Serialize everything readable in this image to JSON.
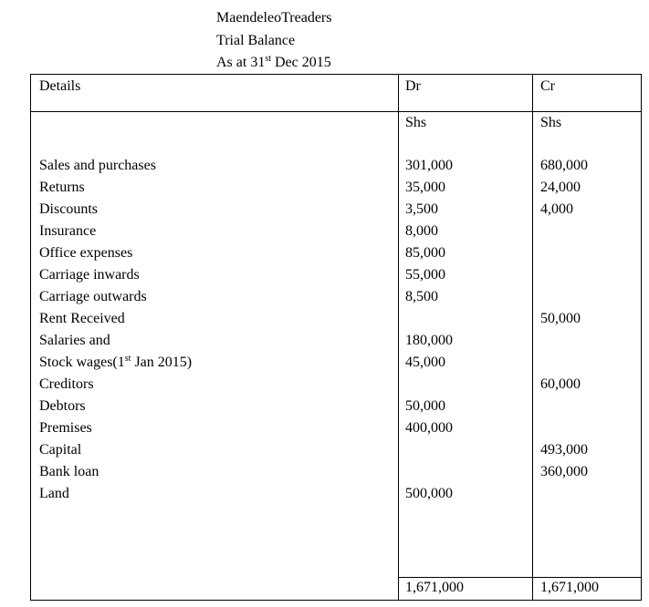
{
  "header": {
    "business_name": "MaendeleoTreaders",
    "statement": "Trial Balance",
    "date_prefix": "As at 31",
    "date_sup": "st",
    "date_suffix": " Dec 2015"
  },
  "table": {
    "columns": [
      "Details",
      "Dr",
      "Cr"
    ],
    "currency": {
      "dr": "Shs",
      "cr": "Shs"
    },
    "rows": [
      {
        "details": "Sales and purchases",
        "dr": "301,000",
        "cr": "680,000"
      },
      {
        "details": "Returns",
        "dr": "35,000",
        "cr": "24,000"
      },
      {
        "details": "Discounts",
        "dr": "3,500",
        "cr": "4,000"
      },
      {
        "details": "Insurance",
        "dr": "8,000",
        "cr": ""
      },
      {
        "details": "Office expenses",
        "dr": "85,000",
        "cr": ""
      },
      {
        "details": "Carriage inwards",
        "dr": "55,000",
        "cr": ""
      },
      {
        "details": "Carriage outwards",
        "dr": "8,500",
        "cr": ""
      },
      {
        "details": "Rent Received",
        "dr": "",
        "cr": "50,000"
      },
      {
        "details": "Salaries and",
        "dr": "180,000",
        "cr": ""
      },
      {
        "details": "Stock wages(1",
        "details_sup": "st",
        "details_suffix": " Jan 2015)",
        "dr": "45,000",
        "cr": ""
      },
      {
        "details": "Creditors",
        "dr": "",
        "cr": "60,000"
      },
      {
        "details": "Debtors",
        "dr": "50,000",
        "cr": ""
      },
      {
        "details": "Premises",
        "dr": "400,000",
        "cr": ""
      },
      {
        "details": "Capital",
        "dr": "",
        "cr": "493,000"
      },
      {
        "details": "Bank loan",
        "dr": "",
        "cr": "360,000"
      },
      {
        "details": "Land",
        "dr": "500,000",
        "cr": ""
      }
    ],
    "totals": {
      "dr": "1,671,000",
      "cr": "1,671,000"
    }
  }
}
